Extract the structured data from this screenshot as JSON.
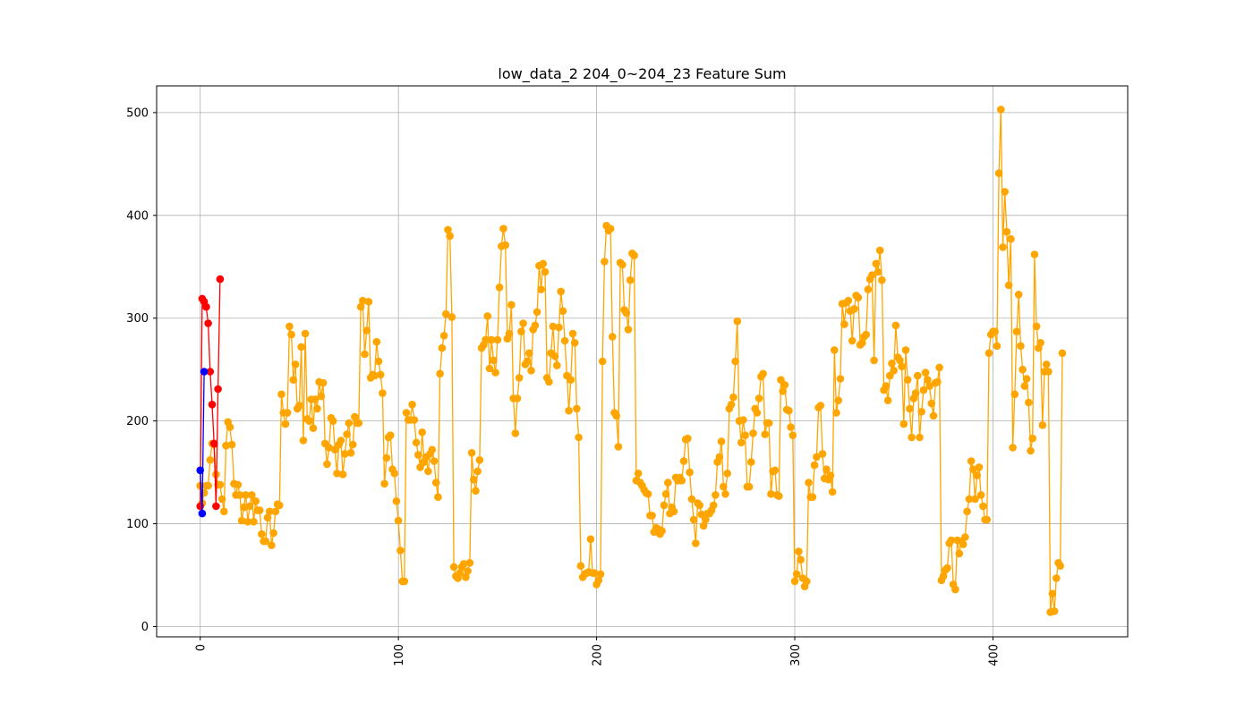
{
  "chart_data": {
    "type": "line",
    "title": "low_data_2 204_0~204_23 Feature Sum",
    "xlabel": "",
    "ylabel": "",
    "xlim": [
      -22,
      468
    ],
    "ylim": [
      -10,
      526
    ],
    "grid": true,
    "x_ticks": [
      0,
      100,
      200,
      300,
      400
    ],
    "y_ticks": [
      0,
      100,
      200,
      300,
      400,
      500
    ],
    "x_tick_rotation": "vertical",
    "series": [
      {
        "color": "#ffa500",
        "marker": "circle",
        "x_start": 0,
        "values": [
          137,
          120,
          130,
          137,
          137,
          162,
          178,
          177,
          148,
          138,
          138,
          124,
          112,
          176,
          199,
          194,
          177,
          139,
          128,
          138,
          128,
          103,
          116,
          128,
          102,
          117,
          128,
          102,
          122,
          113,
          113,
          90,
          83,
          83,
          106,
          112,
          79,
          91,
          112,
          119,
          118,
          226,
          208,
          197,
          208,
          292,
          284,
          240,
          255,
          212,
          215,
          272,
          181,
          285,
          202,
          200,
          221,
          193,
          221,
          212,
          238,
          224,
          237,
          178,
          158,
          174,
          203,
          200,
          172,
          149,
          177,
          181,
          148,
          168,
          187,
          198,
          169,
          177,
          204,
          198,
          198,
          311,
          317,
          265,
          288,
          316,
          242,
          245,
          244,
          277,
          258,
          245,
          227,
          139,
          164,
          184,
          186,
          153,
          149,
          122,
          103,
          74,
          44,
          44,
          208,
          201,
          201,
          216,
          201,
          179,
          167,
          155,
          189,
          160,
          165,
          151,
          168,
          172,
          161,
          140,
          126,
          246,
          271,
          283,
          304,
          386,
          380,
          301,
          58,
          49,
          47,
          52,
          58,
          61,
          48,
          54,
          62,
          169,
          143,
          132,
          151,
          162,
          271,
          274,
          279,
          302,
          251,
          279,
          259,
          247,
          279,
          330,
          370,
          387,
          371,
          280,
          285,
          313,
          222,
          188,
          222,
          242,
          287,
          295,
          255,
          258,
          266,
          249,
          289,
          293,
          306,
          351,
          328,
          353,
          345,
          242,
          238,
          266,
          292,
          263,
          254,
          291,
          326,
          307,
          278,
          244,
          210,
          240,
          285,
          276,
          212,
          184,
          59,
          48,
          51,
          52,
          53,
          85,
          52,
          52,
          41,
          45,
          51,
          258,
          355,
          390,
          385,
          387,
          282,
          208,
          205,
          175,
          354,
          352,
          308,
          305,
          289,
          337,
          363,
          361,
          142,
          149,
          140,
          137,
          133,
          130,
          129,
          108,
          108,
          92,
          96,
          95,
          90,
          93,
          118,
          129,
          140,
          110,
          116,
          112,
          145,
          142,
          145,
          142,
          161,
          182,
          183,
          150,
          124,
          104,
          81,
          120,
          118,
          109,
          98,
          104,
          110,
          110,
          113,
          118,
          128,
          160,
          165,
          180,
          136,
          129,
          149,
          212,
          216,
          223,
          258,
          297,
          200,
          179,
          201,
          186,
          136,
          136,
          160,
          188,
          212,
          208,
          222,
          243,
          246,
          187,
          198,
          198,
          129,
          151,
          152,
          128,
          127,
          240,
          229,
          235,
          211,
          210,
          194,
          186,
          44,
          51,
          73,
          65,
          47,
          39,
          44,
          140,
          126,
          126,
          157,
          165,
          213,
          215,
          168,
          144,
          153,
          143,
          147,
          131,
          269,
          208,
          220,
          241,
          314,
          294,
          315,
          317,
          307,
          278,
          309,
          322,
          320,
          274,
          276,
          282,
          284,
          328,
          338,
          342,
          259,
          353,
          345,
          366,
          337,
          230,
          234,
          220,
          244,
          256,
          249,
          293,
          262,
          259,
          253,
          197,
          269,
          240,
          212,
          184,
          222,
          227,
          244,
          184,
          209,
          230,
          247,
          240,
          234,
          217,
          205,
          237,
          238,
          252,
          45,
          49,
          55,
          57,
          81,
          84,
          41,
          36,
          84,
          71,
          83,
          80,
          87,
          112,
          124,
          161,
          153,
          124,
          147,
          155,
          128,
          117,
          104,
          104,
          266,
          284,
          287,
          287,
          273,
          441,
          503,
          369,
          423,
          384,
          332,
          377,
          174,
          226,
          287,
          323,
          273,
          250,
          234,
          241,
          218,
          171,
          183,
          362,
          292,
          271,
          276,
          196,
          248,
          255,
          248,
          14,
          32,
          15,
          47,
          62,
          59,
          266
        ]
      },
      {
        "color": "#ff0000",
        "marker": "circle",
        "x": [
          0,
          1,
          2,
          3,
          4,
          5,
          6,
          7,
          8,
          9,
          10
        ],
        "values": [
          117,
          319,
          316,
          311,
          295,
          248,
          216,
          178,
          117,
          231,
          338
        ]
      },
      {
        "color": "#0000ff",
        "marker": "circle",
        "x": [
          0,
          1,
          2
        ],
        "values": [
          152,
          110,
          248
        ]
      }
    ]
  }
}
